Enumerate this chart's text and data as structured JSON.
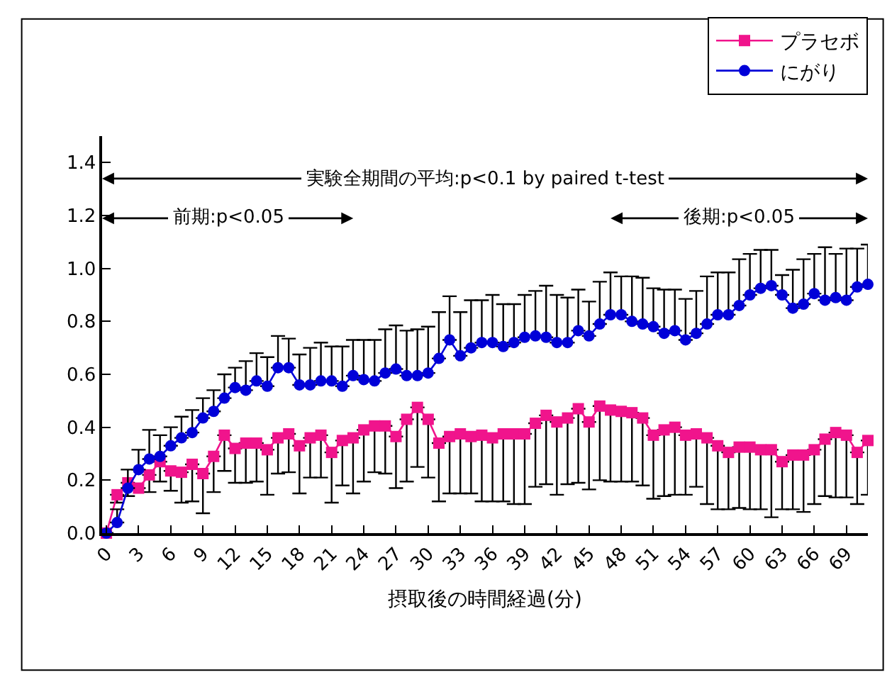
{
  "chart_data": {
    "type": "line",
    "xlabel": "摂取後の時間経過(分)",
    "x": [
      0,
      1,
      2,
      3,
      4,
      5,
      6,
      7,
      8,
      9,
      10,
      11,
      12,
      13,
      14,
      15,
      16,
      17,
      18,
      19,
      20,
      21,
      22,
      23,
      24,
      25,
      26,
      27,
      28,
      29,
      30,
      31,
      32,
      33,
      34,
      35,
      36,
      37,
      38,
      39,
      40,
      41,
      42,
      43,
      44,
      45,
      46,
      47,
      48,
      49,
      50,
      51,
      52,
      53,
      54,
      55,
      56,
      57,
      58,
      59,
      60,
      61,
      62,
      63,
      64,
      65,
      66,
      67,
      68,
      69,
      70,
      71
    ],
    "xlim": [
      -0.4,
      71
    ],
    "xticks": [
      0,
      3,
      6,
      9,
      12,
      15,
      18,
      21,
      24,
      27,
      30,
      33,
      36,
      39,
      42,
      45,
      48,
      51,
      54,
      57,
      60,
      63,
      66,
      69
    ],
    "ylim": [
      0,
      1.5
    ],
    "yticks": [
      {
        "value": 0,
        "label": "0.0"
      },
      {
        "value": 0.2,
        "label": "0.2"
      },
      {
        "value": 0.4,
        "label": "0.4"
      },
      {
        "value": 0.6,
        "label": "0.6"
      },
      {
        "value": 0.8,
        "label": "0.8"
      },
      {
        "value": 1.0,
        "label": "1.0"
      },
      {
        "value": 1.2,
        "label": "1.2"
      },
      {
        "value": 1.4,
        "label": "1.4"
      }
    ],
    "grid": false,
    "legend": "top right",
    "line_style": "solid",
    "series": [
      {
        "name": "プラセボ",
        "color": "#f0148c",
        "marker": "square",
        "values": [
          0,
          0.145,
          0.19,
          0.17,
          0.22,
          0.27,
          0.235,
          0.23,
          0.26,
          0.225,
          0.29,
          0.37,
          0.32,
          0.34,
          0.34,
          0.315,
          0.36,
          0.375,
          0.33,
          0.36,
          0.37,
          0.305,
          0.35,
          0.36,
          0.39,
          0.405,
          0.405,
          0.365,
          0.43,
          0.475,
          0.43,
          0.34,
          0.365,
          0.375,
          0.365,
          0.37,
          0.36,
          0.375,
          0.375,
          0.375,
          0.415,
          0.445,
          0.42,
          0.435,
          0.47,
          0.42,
          0.48,
          0.465,
          0.46,
          0.455,
          0.435,
          0.37,
          0.39,
          0.4,
          0.37,
          0.375,
          0.36,
          0.33,
          0.305,
          0.325,
          0.325,
          0.315,
          0.315,
          0.27,
          0.295,
          0.295,
          0.315,
          0.355,
          0.38,
          0.37,
          0.305,
          0.35
        ],
        "errors": [
          null,
          [
            0.115,
            0.145
          ],
          [
            0.14,
            0.19
          ],
          null,
          [
            0.155,
            0.22
          ],
          [
            0.195,
            0.27
          ],
          [
            0.16,
            0.235
          ],
          [
            0.115,
            0.23
          ],
          [
            0.12,
            0.26
          ],
          [
            0.075,
            0.225
          ],
          [
            0.155,
            0.29
          ],
          [
            0.235,
            0.37
          ],
          [
            0.19,
            0.32
          ],
          [
            0.19,
            0.34
          ],
          [
            0.195,
            0.34
          ],
          [
            0.145,
            0.315
          ],
          [
            0.225,
            0.36
          ],
          [
            0.23,
            0.375
          ],
          [
            0.15,
            0.33
          ],
          [
            0.21,
            0.36
          ],
          [
            0.21,
            0.37
          ],
          [
            0.115,
            0.305
          ],
          [
            0.18,
            0.35
          ],
          [
            0.15,
            0.36
          ],
          [
            0.195,
            0.39
          ],
          [
            0.23,
            0.405
          ],
          [
            0.225,
            0.405
          ],
          [
            0.17,
            0.365
          ],
          [
            0.195,
            0.43
          ],
          [
            0.25,
            0.475
          ],
          [
            0.21,
            0.43
          ],
          [
            0.12,
            0.34
          ],
          [
            0.15,
            0.365
          ],
          [
            0.15,
            0.375
          ],
          [
            0.15,
            0.365
          ],
          [
            0.12,
            0.37
          ],
          [
            0.12,
            0.36
          ],
          [
            0.12,
            0.375
          ],
          [
            0.11,
            0.375
          ],
          [
            0.11,
            0.375
          ],
          [
            0.175,
            0.415
          ],
          [
            0.185,
            0.445
          ],
          [
            0.145,
            0.42
          ],
          [
            0.185,
            0.435
          ],
          [
            0.19,
            0.47
          ],
          [
            0.165,
            0.42
          ],
          [
            0.2,
            0.48
          ],
          [
            0.195,
            0.465
          ],
          [
            0.195,
            0.46
          ],
          [
            0.195,
            0.455
          ],
          [
            0.18,
            0.435
          ],
          [
            0.13,
            0.37
          ],
          [
            0.14,
            0.39
          ],
          [
            0.145,
            0.4
          ],
          [
            0.145,
            0.37
          ],
          [
            0.175,
            0.375
          ],
          [
            0.11,
            0.36
          ],
          [
            0.09,
            0.33
          ],
          [
            0.09,
            0.305
          ],
          [
            0.095,
            0.325
          ],
          [
            0.09,
            0.325
          ],
          [
            0.09,
            0.315
          ],
          [
            0.06,
            0.315
          ],
          [
            0.09,
            0.27
          ],
          [
            0.09,
            0.295
          ],
          [
            0.08,
            0.295
          ],
          [
            0.11,
            0.315
          ],
          [
            0.14,
            0.355
          ],
          [
            0.135,
            0.38
          ],
          [
            0.135,
            0.37
          ],
          [
            0.11,
            0.305
          ],
          [
            0.145,
            0.35
          ]
        ]
      },
      {
        "name": "にがり",
        "color": "#0000d8",
        "marker": "circle",
        "values": [
          0,
          0.04,
          0.17,
          0.24,
          0.28,
          0.29,
          0.33,
          0.36,
          0.38,
          0.435,
          0.46,
          0.51,
          0.55,
          0.54,
          0.575,
          0.555,
          0.625,
          0.625,
          0.56,
          0.56,
          0.575,
          0.575,
          0.555,
          0.595,
          0.58,
          0.575,
          0.605,
          0.62,
          0.595,
          0.595,
          0.605,
          0.66,
          0.73,
          0.67,
          0.7,
          0.72,
          0.72,
          0.705,
          0.72,
          0.74,
          0.745,
          0.74,
          0.72,
          0.72,
          0.765,
          0.745,
          0.79,
          0.825,
          0.825,
          0.8,
          0.79,
          0.78,
          0.755,
          0.765,
          0.73,
          0.755,
          0.79,
          0.825,
          0.825,
          0.86,
          0.9,
          0.925,
          0.935,
          0.9,
          0.85,
          0.865,
          0.905,
          0.88,
          0.89,
          0.88,
          0.93,
          0.94
        ],
        "errors": [
          null,
          [
            0.04,
            0.09
          ],
          [
            0.17,
            0.24
          ],
          [
            0.24,
            0.315
          ],
          [
            0.28,
            0.39
          ],
          [
            0.29,
            0.37
          ],
          [
            0.33,
            0.4
          ],
          [
            0.36,
            0.44
          ],
          [
            0.38,
            0.465
          ],
          [
            0.435,
            0.51
          ],
          [
            0.46,
            0.54
          ],
          [
            0.51,
            0.6
          ],
          [
            0.55,
            0.625
          ],
          [
            0.54,
            0.65
          ],
          [
            0.575,
            0.68
          ],
          [
            0.555,
            0.665
          ],
          [
            0.625,
            0.745
          ],
          [
            0.625,
            0.735
          ],
          [
            0.56,
            0.675
          ],
          [
            0.56,
            0.7
          ],
          [
            0.575,
            0.72
          ],
          [
            0.575,
            0.705
          ],
          [
            0.555,
            0.705
          ],
          [
            0.595,
            0.73
          ],
          [
            0.58,
            0.73
          ],
          [
            0.575,
            0.73
          ],
          [
            0.605,
            0.77
          ],
          [
            0.62,
            0.785
          ],
          [
            0.595,
            0.765
          ],
          [
            0.595,
            0.77
          ],
          [
            0.605,
            0.78
          ],
          [
            0.66,
            0.835
          ],
          [
            0.73,
            0.895
          ],
          [
            0.67,
            0.835
          ],
          [
            0.7,
            0.88
          ],
          [
            0.72,
            0.88
          ],
          [
            0.72,
            0.9
          ],
          [
            0.705,
            0.865
          ],
          [
            0.72,
            0.865
          ],
          [
            0.74,
            0.9
          ],
          [
            0.745,
            0.915
          ],
          [
            0.74,
            0.935
          ],
          [
            0.72,
            0.9
          ],
          [
            0.72,
            0.89
          ],
          [
            0.765,
            0.92
          ],
          [
            0.745,
            0.875
          ],
          [
            0.79,
            0.95
          ],
          [
            0.825,
            0.985
          ],
          [
            0.825,
            0.97
          ],
          [
            0.8,
            0.97
          ],
          [
            0.79,
            0.965
          ],
          [
            0.78,
            0.925
          ],
          [
            0.755,
            0.92
          ],
          [
            0.765,
            0.92
          ],
          [
            0.73,
            0.885
          ],
          [
            0.755,
            0.915
          ],
          [
            0.79,
            0.97
          ],
          [
            0.825,
            0.985
          ],
          [
            0.825,
            0.985
          ],
          [
            0.86,
            1.035
          ],
          [
            0.9,
            1.055
          ],
          [
            0.925,
            1.07
          ],
          [
            0.935,
            1.07
          ],
          [
            0.9,
            0.975
          ],
          [
            0.85,
            0.995
          ],
          [
            0.865,
            1.035
          ],
          [
            0.905,
            1.055
          ],
          [
            0.88,
            1.08
          ],
          [
            0.89,
            1.055
          ],
          [
            0.88,
            1.075
          ],
          [
            0.93,
            1.075
          ],
          [
            0.94,
            1.09
          ]
        ]
      }
    ],
    "annotations": [
      "実験全期間の平均:p<0.1 by paired t-test",
      "前期:p<0.05",
      "後期:p<0.05"
    ]
  }
}
